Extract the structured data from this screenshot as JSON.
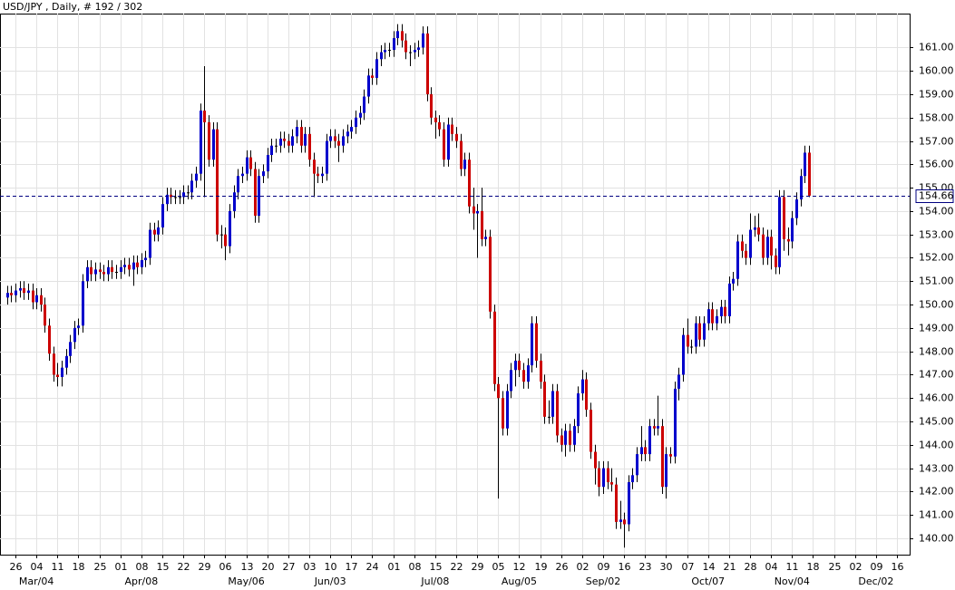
{
  "chart_data": {
    "type": "candlestick",
    "title": "USD/JPY , Daily, # 192 / 302",
    "categories": [
      null,
      null,
      "26",
      null,
      null,
      null,
      null,
      "04",
      null,
      null,
      null,
      null,
      "11",
      null,
      null,
      null,
      null,
      "18",
      null,
      null,
      null,
      null,
      "25",
      null,
      null,
      null,
      null,
      "01",
      null,
      null,
      null,
      null,
      "08",
      null,
      null,
      null,
      null,
      "15",
      null,
      null,
      null,
      null,
      "22",
      null,
      null,
      null,
      null,
      "29",
      null,
      null,
      null,
      null,
      "06",
      null,
      null,
      null,
      null,
      "13",
      null,
      null,
      null,
      null,
      "20",
      null,
      null,
      null,
      null,
      "27",
      null,
      null,
      null,
      null,
      "03",
      null,
      null,
      null,
      null,
      "10",
      null,
      null,
      null,
      null,
      "17",
      null,
      null,
      null,
      null,
      "24",
      null,
      null,
      null,
      null,
      "01",
      null,
      null,
      null,
      null,
      "08",
      null,
      null,
      null,
      null,
      "15",
      null,
      null,
      null,
      null,
      "22",
      null,
      null,
      null,
      null,
      "29",
      null,
      null,
      null,
      null,
      "05",
      null,
      null,
      null,
      null,
      "12",
      null,
      null,
      null,
      null,
      "19",
      null,
      null,
      null,
      null,
      "26",
      null,
      null,
      null,
      null,
      "02",
      null,
      null,
      null,
      null,
      "09",
      null,
      null,
      null,
      null,
      "16",
      null,
      null,
      null,
      null,
      "23",
      null,
      null,
      null,
      null,
      "30",
      null,
      null,
      null,
      null,
      "07",
      null,
      null,
      null,
      null,
      "14",
      null,
      null,
      null,
      null,
      "21",
      null,
      null,
      null,
      null,
      "28",
      null,
      null,
      null,
      null,
      "04",
      null,
      null,
      null,
      null,
      "11",
      null,
      null,
      null,
      null,
      "18",
      null,
      null,
      null,
      null,
      "25",
      null,
      null,
      null,
      null,
      "02",
      null,
      null,
      null,
      null,
      "09",
      null,
      null,
      null,
      null,
      "16"
    ],
    "month_labels": [
      null,
      null,
      null,
      null,
      null,
      null,
      null,
      "Mar/04",
      null,
      null,
      null,
      null,
      null,
      null,
      null,
      null,
      null,
      null,
      null,
      null,
      null,
      null,
      null,
      null,
      null,
      null,
      null,
      null,
      null,
      null,
      null,
      null,
      "Apr/08",
      null,
      null,
      null,
      null,
      null,
      null,
      null,
      null,
      null,
      null,
      null,
      null,
      null,
      null,
      null,
      null,
      null,
      null,
      null,
      null,
      null,
      null,
      null,
      null,
      "May/06",
      null,
      null,
      null,
      null,
      null,
      null,
      null,
      null,
      null,
      null,
      null,
      null,
      null,
      null,
      null,
      null,
      null,
      null,
      null,
      "Jun/03",
      null,
      null,
      null,
      null,
      null,
      null,
      null,
      null,
      null,
      null,
      null,
      null,
      null,
      null,
      null,
      null,
      null,
      null,
      null,
      null,
      null,
      null,
      null,
      null,
      "Jul/08",
      null,
      null,
      null,
      null,
      null,
      null,
      null,
      null,
      null,
      null,
      null,
      null,
      null,
      null,
      null,
      null,
      null,
      null,
      null,
      "Aug/05",
      null,
      null,
      null,
      null,
      null,
      null,
      null,
      null,
      null,
      null,
      null,
      null,
      null,
      null,
      null,
      null,
      null,
      null,
      null,
      "Sep/02",
      null,
      null,
      null,
      null,
      null,
      null,
      null,
      null,
      null,
      null,
      null,
      null,
      null,
      null,
      null,
      null,
      null,
      null,
      null,
      null,
      null,
      null,
      null,
      null,
      "Oct/07",
      null,
      null,
      null,
      null,
      null,
      null,
      null,
      null,
      null,
      null,
      null,
      null,
      null,
      null,
      null,
      null,
      null,
      null,
      null,
      "Nov/04",
      null,
      null,
      null,
      null,
      null,
      null,
      null,
      null,
      null,
      null,
      null,
      null,
      null,
      null,
      null,
      null,
      null,
      null,
      null,
      "Dec/02",
      null,
      null,
      null,
      null,
      null
    ],
    "open": [
      150.3,
      150.5,
      150.4,
      150.6,
      150.7,
      150.5,
      150.6,
      150.1,
      150.4,
      150.0,
      149.1,
      147.9,
      147.0,
      146.9,
      147.3,
      147.8,
      148.4,
      149.0,
      149.1,
      151.0,
      151.6,
      151.3,
      151.5,
      151.4,
      151.3,
      151.6,
      151.4,
      151.4,
      151.6,
      151.7,
      151.5,
      151.8,
      151.6,
      151.9,
      152.0,
      153.2,
      153.0,
      153.3,
      154.3,
      154.7,
      154.6,
      154.6,
      154.6,
      154.8,
      154.8,
      155.3,
      155.6,
      158.3,
      157.8,
      156.2,
      157.5,
      153.0,
      153.0,
      152.5,
      154.0,
      154.8,
      155.5,
      155.6,
      156.3,
      155.8,
      153.8,
      155.5,
      155.7,
      156.4,
      156.8,
      156.8,
      157.1,
      157.0,
      156.8,
      157.2,
      157.6,
      156.8,
      157.3,
      156.2,
      155.6,
      155.5,
      155.6,
      157.0,
      157.2,
      157.0,
      156.8,
      157.2,
      157.4,
      157.6,
      158.0,
      158.2,
      158.9,
      159.8,
      159.7,
      160.5,
      160.8,
      160.9,
      160.9,
      161.4,
      161.7,
      161.3,
      160.8,
      160.8,
      160.9,
      161.0,
      161.6,
      159.0,
      158.0,
      157.8,
      157.5,
      156.2,
      157.7,
      157.3,
      157.0,
      155.8,
      156.2,
      154.2,
      153.9,
      154.0,
      152.8,
      152.9,
      149.7,
      146.6,
      146.0,
      144.7,
      146.3,
      147.2,
      147.6,
      147.2,
      146.7,
      147.4,
      149.2,
      147.6,
      146.7,
      145.2,
      145.2,
      146.3,
      144.4,
      144.0,
      144.6,
      144.0,
      144.8,
      146.2,
      146.8,
      145.5,
      143.7,
      143.0,
      142.2,
      143.0,
      142.4,
      142.3,
      140.7,
      140.8,
      140.6,
      142.4,
      142.7,
      143.6,
      143.9,
      143.6,
      144.8,
      144.7,
      144.8,
      142.2,
      143.6,
      143.5,
      146.4,
      147.0,
      148.7,
      148.2,
      148.2,
      149.2,
      148.5,
      149.2,
      149.8,
      149.2,
      149.5,
      149.9,
      149.5,
      150.9,
      151.1,
      152.7,
      152.3,
      152.0,
      153.2,
      153.3,
      153.0,
      152.0,
      152.9,
      152.1,
      151.6,
      154.6,
      152.8,
      152.7,
      153.7,
      154.5,
      155.5,
      156.5,
      null,
      null,
      null,
      null,
      null,
      null,
      null,
      null,
      null,
      null,
      null,
      null,
      null,
      null,
      null,
      null,
      null,
      null,
      null,
      null,
      null
    ],
    "high": [
      150.8,
      150.8,
      150.9,
      151.0,
      151.0,
      150.9,
      150.9,
      150.7,
      150.7,
      150.3,
      149.4,
      148.2,
      147.5,
      147.6,
      148.1,
      148.7,
      149.3,
      149.4,
      151.3,
      151.9,
      151.9,
      151.8,
      151.8,
      151.7,
      151.9,
      151.9,
      151.7,
      151.9,
      152.0,
      152.0,
      152.1,
      152.1,
      152.2,
      152.3,
      153.5,
      153.5,
      153.6,
      154.6,
      155.0,
      155.0,
      154.9,
      154.9,
      155.1,
      155.1,
      155.6,
      155.9,
      158.6,
      160.2,
      158.1,
      157.8,
      157.8,
      153.4,
      153.3,
      154.3,
      155.1,
      155.8,
      155.9,
      156.6,
      156.6,
      156.1,
      155.8,
      156.0,
      156.7,
      157.1,
      157.1,
      157.4,
      157.4,
      157.3,
      157.5,
      157.9,
      157.9,
      157.6,
      157.6,
      156.5,
      155.9,
      155.9,
      157.3,
      157.5,
      157.5,
      157.3,
      157.5,
      157.7,
      157.9,
      158.3,
      158.5,
      159.2,
      160.1,
      160.1,
      160.8,
      161.1,
      161.2,
      161.2,
      161.7,
      162.0,
      162.0,
      161.6,
      161.1,
      161.2,
      161.3,
      161.9,
      161.9,
      159.3,
      158.3,
      158.1,
      157.8,
      158.0,
      158.0,
      157.6,
      157.3,
      156.5,
      156.5,
      155.0,
      154.3,
      155.0,
      153.2,
      153.2,
      150.0,
      146.9,
      146.3,
      146.6,
      147.5,
      147.9,
      147.9,
      147.5,
      147.7,
      149.5,
      149.5,
      147.9,
      147.0,
      145.9,
      146.6,
      146.6,
      144.7,
      144.9,
      144.9,
      145.1,
      146.5,
      147.2,
      147.1,
      145.8,
      144.0,
      143.3,
      143.3,
      143.3,
      143.0,
      142.6,
      141.6,
      141.1,
      142.7,
      143.0,
      143.9,
      144.8,
      144.2,
      145.1,
      145.1,
      146.1,
      145.1,
      143.9,
      143.9,
      146.7,
      147.3,
      149.0,
      149.4,
      148.5,
      149.5,
      149.5,
      149.5,
      150.1,
      150.1,
      149.8,
      150.2,
      150.2,
      151.2,
      151.4,
      153.0,
      153.0,
      152.6,
      153.9,
      153.8,
      153.9,
      153.3,
      153.2,
      153.2,
      152.4,
      154.9,
      154.9,
      153.3,
      154.0,
      154.8,
      155.8,
      156.8,
      156.8,
      null,
      null,
      null,
      null,
      null,
      null,
      null,
      null,
      null,
      null,
      null,
      null,
      null,
      null,
      null,
      null,
      null,
      null,
      null,
      null,
      null
    ],
    "low": [
      150.0,
      150.1,
      150.1,
      150.3,
      150.2,
      150.2,
      149.8,
      149.8,
      149.7,
      148.8,
      147.6,
      146.7,
      146.5,
      146.5,
      147.0,
      147.5,
      148.1,
      148.7,
      148.8,
      150.7,
      151.0,
      151.0,
      151.1,
      151.0,
      151.0,
      151.1,
      151.1,
      151.1,
      151.3,
      151.2,
      150.8,
      151.3,
      151.3,
      151.6,
      151.7,
      152.7,
      152.7,
      153.0,
      154.0,
      154.3,
      154.3,
      154.3,
      154.3,
      154.5,
      154.5,
      155.0,
      155.3,
      154.6,
      155.9,
      155.9,
      152.7,
      152.4,
      151.9,
      152.2,
      153.7,
      154.5,
      155.2,
      155.3,
      155.5,
      153.5,
      153.5,
      155.2,
      155.4,
      156.1,
      156.5,
      156.5,
      156.7,
      156.5,
      156.5,
      156.9,
      156.5,
      156.5,
      155.9,
      154.6,
      155.2,
      155.2,
      155.3,
      156.7,
      156.7,
      156.1,
      156.5,
      156.9,
      157.1,
      157.3,
      157.7,
      157.9,
      158.6,
      159.4,
      159.4,
      160.2,
      160.5,
      160.6,
      160.6,
      161.1,
      161.0,
      160.5,
      160.2,
      160.5,
      160.6,
      160.7,
      158.7,
      157.7,
      157.1,
      157.2,
      155.9,
      155.9,
      157.0,
      156.7,
      155.5,
      155.5,
      153.9,
      153.2,
      152.0,
      152.5,
      152.5,
      149.4,
      146.3,
      141.7,
      144.4,
      144.4,
      146.0,
      146.5,
      146.9,
      146.4,
      146.4,
      147.1,
      147.3,
      146.4,
      144.9,
      144.9,
      144.9,
      144.1,
      143.7,
      143.5,
      143.7,
      143.7,
      144.5,
      145.9,
      145.2,
      143.4,
      142.3,
      141.8,
      141.9,
      142.1,
      142.0,
      140.4,
      140.4,
      139.6,
      140.3,
      142.1,
      142.4,
      143.3,
      143.3,
      143.3,
      144.4,
      144.4,
      141.9,
      141.7,
      143.2,
      143.2,
      145.9,
      146.7,
      147.9,
      147.9,
      147.9,
      148.2,
      148.2,
      148.9,
      148.9,
      148.9,
      149.2,
      149.2,
      149.2,
      150.6,
      150.8,
      152.0,
      151.7,
      151.7,
      152.9,
      152.7,
      151.7,
      151.7,
      151.5,
      151.3,
      151.3,
      152.3,
      152.1,
      152.4,
      153.4,
      154.2,
      155.2,
      154.6,
      null,
      null,
      null,
      null,
      null,
      null,
      null,
      null,
      null,
      null,
      null,
      null,
      null,
      null,
      null,
      null,
      null,
      null,
      null,
      null,
      null
    ],
    "close": [
      150.5,
      150.4,
      150.6,
      150.7,
      150.5,
      150.6,
      150.1,
      150.4,
      150.0,
      149.1,
      147.9,
      147.0,
      146.9,
      147.3,
      147.8,
      148.4,
      149.0,
      149.1,
      151.0,
      151.6,
      151.3,
      151.5,
      151.4,
      151.3,
      151.6,
      151.4,
      151.4,
      151.6,
      151.7,
      151.5,
      151.8,
      151.6,
      151.9,
      152.0,
      153.2,
      153.0,
      153.3,
      154.3,
      154.7,
      154.6,
      154.6,
      154.6,
      154.8,
      154.8,
      155.3,
      155.6,
      158.3,
      157.8,
      156.2,
      157.5,
      153.0,
      153.0,
      152.5,
      154.0,
      154.8,
      155.5,
      155.6,
      156.3,
      155.8,
      153.8,
      155.5,
      155.7,
      156.4,
      156.8,
      156.8,
      157.1,
      157.0,
      156.8,
      157.2,
      157.6,
      156.8,
      157.3,
      156.2,
      155.6,
      155.5,
      155.6,
      157.0,
      157.2,
      157.0,
      156.8,
      157.2,
      157.4,
      157.6,
      158.0,
      158.2,
      158.9,
      159.8,
      159.7,
      160.5,
      160.8,
      160.9,
      160.9,
      161.4,
      161.7,
      161.3,
      160.8,
      160.8,
      160.9,
      161.0,
      161.6,
      159.0,
      158.0,
      157.8,
      157.5,
      156.2,
      157.7,
      157.3,
      157.0,
      155.8,
      156.2,
      154.2,
      153.9,
      154.0,
      152.8,
      152.9,
      149.7,
      146.6,
      146.0,
      144.7,
      146.3,
      147.2,
      147.6,
      147.2,
      146.7,
      147.4,
      149.2,
      147.6,
      146.7,
      145.2,
      145.2,
      146.3,
      144.4,
      144.0,
      144.6,
      144.0,
      144.8,
      146.2,
      146.8,
      145.5,
      143.7,
      143.0,
      142.2,
      143.0,
      142.4,
      142.3,
      140.7,
      140.8,
      140.6,
      142.4,
      142.7,
      143.6,
      143.9,
      143.6,
      144.8,
      144.7,
      144.8,
      142.2,
      143.6,
      143.5,
      146.4,
      147.0,
      148.7,
      148.2,
      148.2,
      149.2,
      148.5,
      149.2,
      149.8,
      149.2,
      149.5,
      149.9,
      149.5,
      150.9,
      151.1,
      152.7,
      152.3,
      152.0,
      153.2,
      153.3,
      153.0,
      152.0,
      152.9,
      152.1,
      151.6,
      154.6,
      152.8,
      152.7,
      153.7,
      154.5,
      155.5,
      156.5,
      154.66,
      null,
      null,
      null,
      null,
      null,
      null,
      null,
      null,
      null,
      null,
      null,
      null,
      null,
      null,
      null,
      null,
      null,
      null,
      null,
      null,
      null
    ],
    "up_color": "#0000cc",
    "down_color": "#cc0000",
    "wick_color": "#000000",
    "last_price": 154.66,
    "last_price_color": "#000080",
    "ylim": [
      139.3,
      162.45
    ],
    "yticks": [
      {
        "value": 140,
        "label": "140.00"
      },
      {
        "value": 141,
        "label": "141.00"
      },
      {
        "value": 142,
        "label": "142.00"
      },
      {
        "value": 143,
        "label": "143.00"
      },
      {
        "value": 144,
        "label": "144.00"
      },
      {
        "value": 145,
        "label": "145.00"
      },
      {
        "value": 146,
        "label": "146.00"
      },
      {
        "value": 147,
        "label": "147.00"
      },
      {
        "value": 148,
        "label": "148.00"
      },
      {
        "value": 149,
        "label": "149.00"
      },
      {
        "value": 150,
        "label": "150.00"
      },
      {
        "value": 151,
        "label": "151.00"
      },
      {
        "value": 152,
        "label": "152.00"
      },
      {
        "value": 153,
        "label": "153.00"
      },
      {
        "value": 154,
        "label": "154.00"
      },
      {
        "value": 155,
        "label": "155.00"
      },
      {
        "value": 156,
        "label": "156.00"
      },
      {
        "value": 157,
        "label": "157.00"
      },
      {
        "value": 158,
        "label": "158.00"
      },
      {
        "value": 159,
        "label": "159.00"
      },
      {
        "value": 160,
        "label": "160.00"
      },
      {
        "value": 161,
        "label": "161.00"
      }
    ],
    "grid": true
  }
}
